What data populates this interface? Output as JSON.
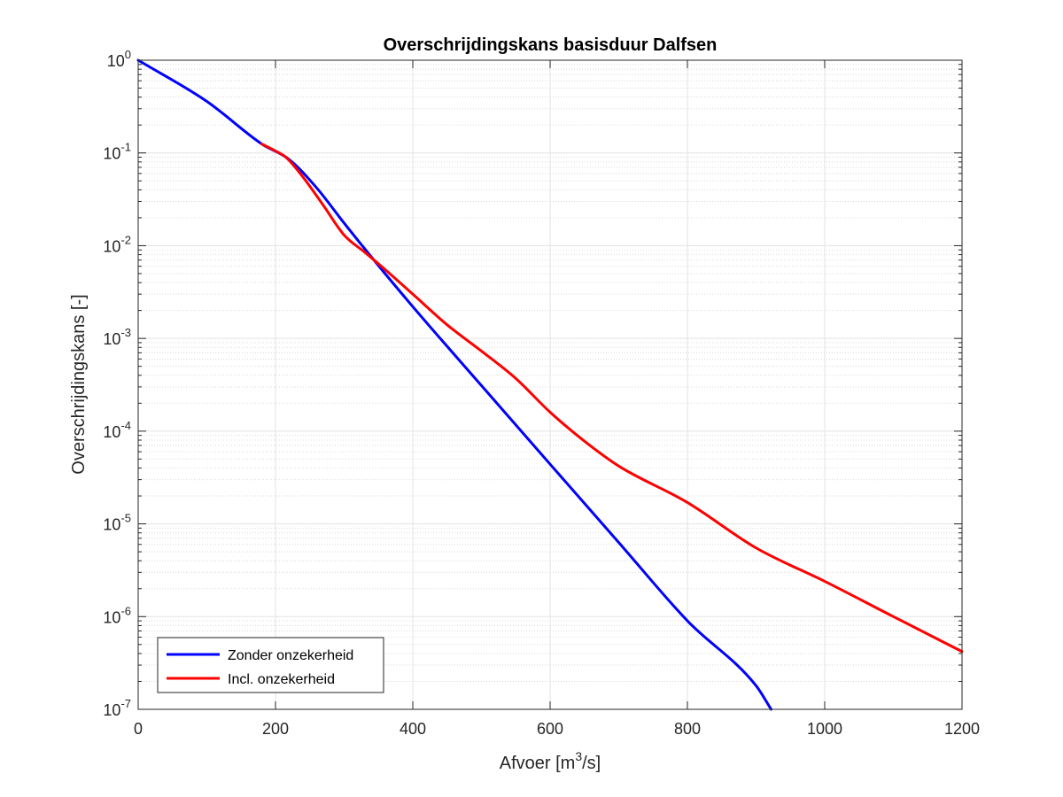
{
  "chart_data": {
    "type": "line",
    "title": "Overschrijdingskans basisduur Dalfsen",
    "xlabel": {
      "main": "Afvoer [m",
      "sup": "3",
      "tail": "/s]"
    },
    "ylabel": "Overschrijdingskans [-]",
    "xlim": [
      0,
      1200
    ],
    "ylim": [
      1e-07,
      1
    ],
    "yscale": "log",
    "grid": true,
    "legend_position": "bottom-left",
    "x_ticks": [
      "0",
      "200",
      "400",
      "600",
      "800",
      "1000",
      "1200"
    ],
    "y_ticks": [
      {
        "base": "10",
        "exp": "0"
      },
      {
        "base": "10",
        "exp": "-1"
      },
      {
        "base": "10",
        "exp": "-2"
      },
      {
        "base": "10",
        "exp": "-3"
      },
      {
        "base": "10",
        "exp": "-4"
      },
      {
        "base": "10",
        "exp": "-5"
      },
      {
        "base": "10",
        "exp": "-6"
      },
      {
        "base": "10",
        "exp": "-7"
      }
    ],
    "series": [
      {
        "name": "Zonder onzekerheid",
        "color": "#0000ff",
        "x": [
          0,
          100,
          180,
          220,
          260,
          300,
          340,
          400,
          500,
          600,
          700,
          800,
          900,
          922
        ],
        "y": [
          1,
          0.36,
          0.125,
          0.085,
          0.042,
          0.0175,
          0.0075,
          0.0022,
          0.00031,
          4.4e-05,
          6.3e-06,
          9e-07,
          1.8e-07,
          1e-07
        ]
      },
      {
        "name": "Incl. onzekerheid",
        "color": "#ff0000",
        "x": [
          180,
          200,
          215,
          240,
          270,
          300,
          330,
          360,
          400,
          450,
          500,
          550,
          600,
          650,
          700,
          800,
          900,
          1000,
          1100,
          1200
        ],
        "y": [
          0.125,
          0.105,
          0.09,
          0.055,
          0.027,
          0.013,
          0.0085,
          0.0055,
          0.003,
          0.0014,
          0.00073,
          0.00037,
          0.00016,
          7.8e-05,
          4.2e-05,
          1.7e-05,
          5.5e-06,
          2.4e-06,
          1e-06,
          4.2e-07
        ]
      }
    ]
  }
}
